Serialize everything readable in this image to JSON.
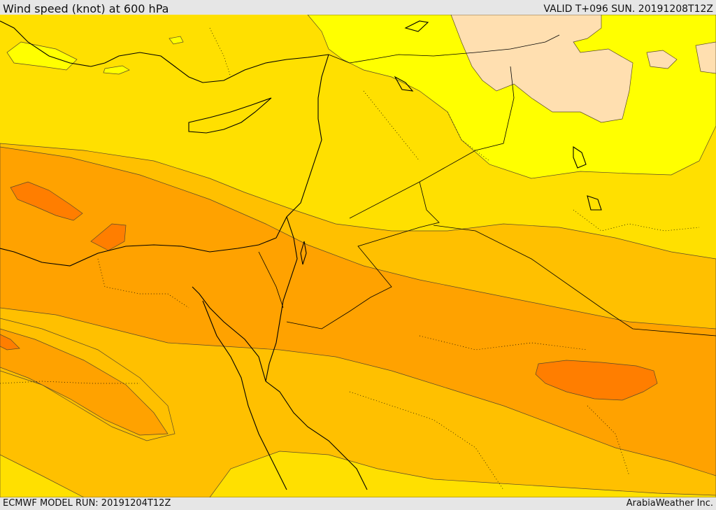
{
  "header": {
    "title": "Wind speed (knot) at 600 hPa",
    "valid": "VALID T+096 SUN. 20191208T12Z"
  },
  "footer": {
    "model_run": "ECMWF MODEL RUN: 20191204T12Z",
    "credit": "ArabiaWeather Inc."
  },
  "colors": {
    "band_1": "#ffff00",
    "band_2": "#ffe000",
    "band_3": "#ffc000",
    "band_4": "#ffa200",
    "band_5": "#ff7e00",
    "calm": "#ffdfb0",
    "coastline": "#000000",
    "contour": "#5a4a2a"
  }
}
